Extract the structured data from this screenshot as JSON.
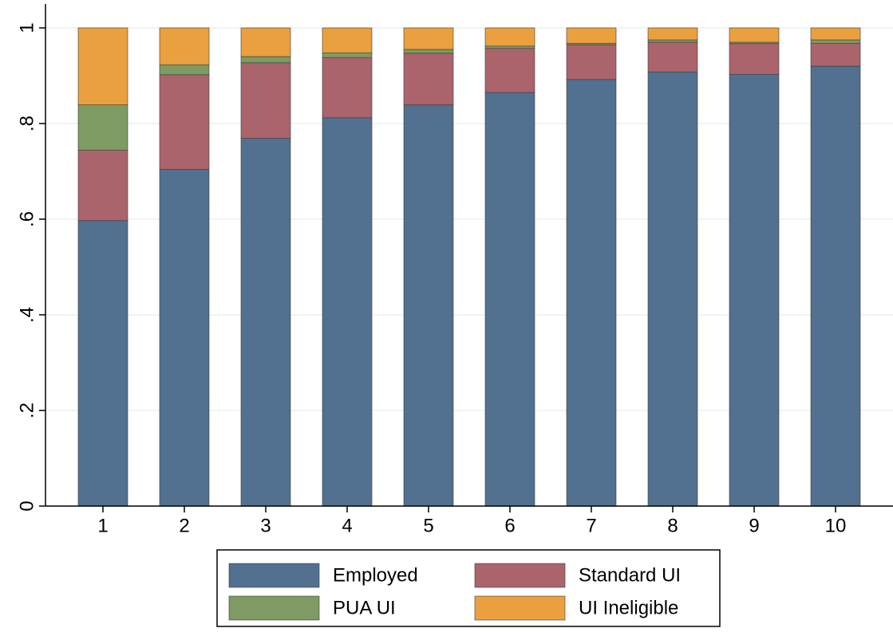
{
  "chart_data": {
    "type": "stacked_bar",
    "categories": [
      "1",
      "2",
      "3",
      "4",
      "5",
      "6",
      "7",
      "8",
      "9",
      "10"
    ],
    "series": [
      {
        "name": "Employed",
        "color": "#52708f",
        "values": [
          0.597,
          0.704,
          0.769,
          0.812,
          0.839,
          0.865,
          0.892,
          0.908,
          0.903,
          0.92
        ]
      },
      {
        "name": "Standard UI",
        "color": "#ab646b",
        "values": [
          0.147,
          0.198,
          0.158,
          0.126,
          0.108,
          0.092,
          0.073,
          0.062,
          0.064,
          0.048
        ]
      },
      {
        "name": "PUA UI",
        "color": "#7f9a62",
        "values": [
          0.095,
          0.021,
          0.013,
          0.01,
          0.008,
          0.005,
          0.003,
          0.005,
          0.003,
          0.007
        ]
      },
      {
        "name": "UI Ineligible",
        "color": "#eba03f",
        "values": [
          0.161,
          0.077,
          0.06,
          0.052,
          0.045,
          0.038,
          0.032,
          0.025,
          0.03,
          0.025
        ]
      }
    ],
    "ylim": [
      0,
      1.05
    ],
    "yticks": [
      0,
      {
        "value": 0.2,
        "label": ".2"
      },
      {
        "value": 0.4,
        "label": ".4"
      },
      {
        "value": 0.6,
        "label": ".6"
      },
      {
        "value": 0.8,
        "label": ".8"
      },
      1
    ],
    "grid": true
  }
}
